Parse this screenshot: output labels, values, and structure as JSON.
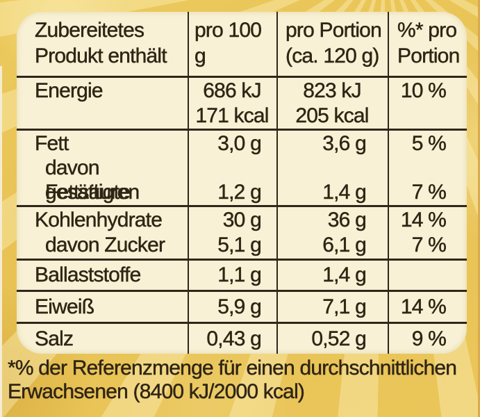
{
  "colors": {
    "background_gold": "#e8c457",
    "panel_cream": "#f8f1d5",
    "ink": "#2f2515"
  },
  "table": {
    "header": {
      "product": "Zubereitetes\nProdukt enthält",
      "per100": "pro 100 g",
      "portion": "pro Portion\n(ca. 120 g)",
      "pct": "%* pro\nPortion"
    },
    "rows": {
      "energie": {
        "label": "Energie",
        "per100": "686 kJ\n171 kcal",
        "portion": "823 kJ\n205 kcal",
        "pct": "10 %"
      },
      "fett": {
        "label": "Fett",
        "label_sub1": "davon gesättigte",
        "label_sub2": "Fettsäuren",
        "per100_top": "3,0 g",
        "per100_bottom": "1,2 g",
        "portion_top": "3,6 g",
        "portion_bottom": "1,4 g",
        "pct_top": "5 %",
        "pct_bottom": "7 %"
      },
      "kohlenhydrate": {
        "label": "Kohlenhydrate",
        "label_sub": "davon Zucker",
        "per100_top": "30 g",
        "per100_bottom": "5,1 g",
        "portion_top": "36 g",
        "portion_bottom": "6,1 g",
        "pct_top": "14 %",
        "pct_bottom": "7 %"
      },
      "ballaststoffe": {
        "label": "Ballaststoffe",
        "per100": "1,1 g",
        "portion": "1,4 g",
        "pct": ""
      },
      "eiweiss": {
        "label": "Eiweiß",
        "per100": "5,9 g",
        "portion": "7,1 g",
        "pct": "14 %"
      },
      "salz": {
        "label": "Salz",
        "per100": "0,43 g",
        "portion": "0,52 g",
        "pct": "9 %"
      }
    },
    "footnote": "*% der Referenzmenge für einen durchschnittlichen\nErwachsenen (8400 kJ/2000 kcal)"
  }
}
